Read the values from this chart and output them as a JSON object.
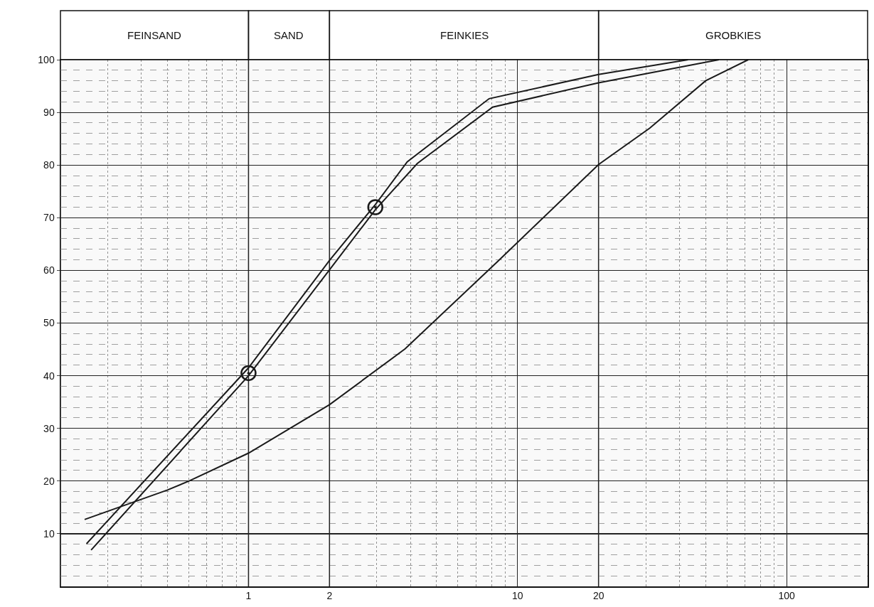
{
  "chart_data": {
    "type": "line",
    "log": "x",
    "xlim": [
      0.2,
      200
    ],
    "xticks": [
      1,
      2,
      10,
      20,
      100
    ],
    "ylim": [
      0,
      100
    ],
    "yticks": [
      10,
      20,
      30,
      40,
      50,
      60,
      70,
      80,
      90,
      100
    ],
    "grid": true,
    "marker": "none",
    "line_style": "solid",
    "bands": [
      {
        "axis": "x",
        "from": 0.2,
        "to": 1,
        "label": "FEINSAND"
      },
      {
        "axis": "x",
        "from": 1,
        "to": 2,
        "label": "SAND"
      },
      {
        "axis": "x",
        "from": 2,
        "to": 20,
        "label": "FEINKIES"
      },
      {
        "axis": "x",
        "from": 20,
        "to": 200,
        "label": "GROBKIES"
      }
    ],
    "series": [
      {
        "color": "#1a1a1a",
        "x": [
          0.25,
          1,
          2,
          2.96,
          3.89,
          7.84,
          20,
          43
        ],
        "values": [
          8.1,
          41.5,
          61.9,
          72.5,
          80.6,
          92.6,
          97.2,
          100
        ]
      },
      {
        "color": "#1a1a1a",
        "x": [
          0.26,
          1,
          2,
          2.96,
          4.24,
          8.08,
          20,
          56
        ],
        "values": [
          6.9,
          40,
          60.1,
          71.5,
          80.3,
          91,
          95.6,
          100
        ]
      },
      {
        "color": "#1a1a1a",
        "x": [
          0.246,
          0.5,
          0.6,
          1,
          2,
          3.82,
          8.4,
          20,
          31,
          50,
          72
        ],
        "values": [
          12.7,
          18.3,
          20,
          25.3,
          34.5,
          45.1,
          61.6,
          80.1,
          87,
          96,
          100
        ]
      },
      {
        "type": "scatter",
        "color": "#1a1a1a",
        "marker": "circle",
        "x": [
          1,
          2.96
        ],
        "values": [
          40.5,
          72
        ]
      }
    ]
  }
}
